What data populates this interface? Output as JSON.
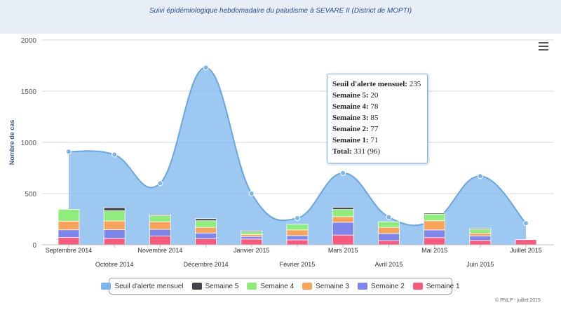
{
  "chart_data": {
    "type": "area+stacked-bar",
    "title": "Suivi épidémiologique hebdomadaire du paludisme à SEVARE II (District de MOPTI)",
    "ylabel": "Nombre de cas",
    "ylim": [
      0,
      2000
    ],
    "yticks": [
      "0",
      "500",
      "1000",
      "1500",
      "2000"
    ],
    "categories": [
      "Septembre 2014",
      "Octobre 2014",
      "Novembre 2014",
      "Décembre 2014",
      "Janvier 2015",
      "Février 2015",
      "Mars 2015",
      "Avril 2015",
      "Mai 2015",
      "Juin 2015",
      "Juillet 2015"
    ],
    "threshold": {
      "name": "Seuil d'alerte mensuel",
      "color": "#7cb5ec",
      "values": [
        910,
        880,
        600,
        1730,
        500,
        260,
        700,
        270,
        240,
        670,
        210
      ]
    },
    "series": [
      {
        "name": "Semaine 1",
        "color": "#f45b7f",
        "values": [
          71,
          62,
          85,
          60,
          56,
          48,
          95,
          40,
          70,
          42,
          50
        ]
      },
      {
        "name": "Semaine 2",
        "color": "#8085e9",
        "values": [
          75,
          85,
          65,
          55,
          25,
          42,
          125,
          70,
          75,
          45,
          0
        ]
      },
      {
        "name": "Semaine 3",
        "color": "#f7a35c",
        "values": [
          85,
          85,
          75,
          55,
          20,
          55,
          55,
          60,
          90,
          25,
          0
        ]
      },
      {
        "name": "Semaine 4",
        "color": "#90ed7d",
        "values": [
          115,
          100,
          60,
          65,
          25,
          55,
          70,
          55,
          65,
          40,
          0
        ]
      },
      {
        "name": "Semaine 5",
        "color": "#434348",
        "values": [
          0,
          30,
          10,
          20,
          10,
          0,
          20,
          0,
          10,
          10,
          0
        ]
      }
    ],
    "grid": true,
    "legend_position": "bottom-center"
  },
  "tooltip": {
    "rows": [
      {
        "label": "Seuil d'alerte mensuel",
        "value": "235"
      },
      {
        "label": "Semaine 5",
        "value": "20"
      },
      {
        "label": "Semaine 4",
        "value": "78"
      },
      {
        "label": "Semaine 3",
        "value": "85"
      },
      {
        "label": "Semaine 2",
        "value": "77"
      },
      {
        "label": "Semaine 1",
        "value": "71"
      },
      {
        "label": "Total",
        "value": "331 (96)"
      }
    ]
  },
  "legend": [
    {
      "label": "Seuil d'alerte mensuel",
      "color": "#7cb5ec"
    },
    {
      "label": "Semaine 5",
      "color": "#434348"
    },
    {
      "label": "Semaine 4",
      "color": "#90ed7d"
    },
    {
      "label": "Semaine 3",
      "color": "#f7a35c"
    },
    {
      "label": "Semaine 2",
      "color": "#8085e9"
    },
    {
      "label": "Semaine 1",
      "color": "#f45b7f"
    }
  ],
  "credits": "© PNLP - juillet 2015",
  "menu_icon": "hamburger-menu-icon"
}
